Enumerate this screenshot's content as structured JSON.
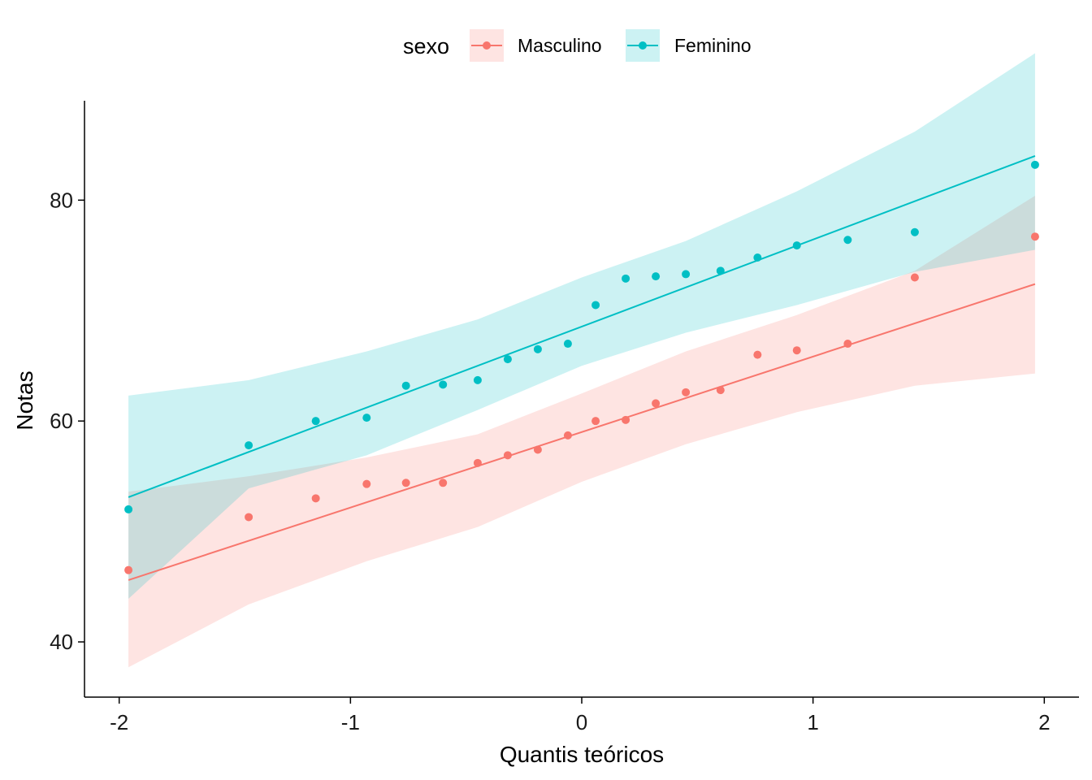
{
  "chart_data": {
    "type": "scatter",
    "title": "",
    "xlabel": "Quantis teóricos",
    "ylabel": "Notas",
    "xlim": [
      -2.15,
      2.15
    ],
    "ylim": [
      35,
      89
    ],
    "xticks": [
      -2,
      -1,
      0,
      1,
      2
    ],
    "xtick_labels": [
      "-2",
      "-1",
      "0",
      "1",
      "2"
    ],
    "yticks": [
      40,
      60,
      80
    ],
    "ytick_labels": [
      "40",
      "60",
      "80"
    ],
    "grid": false,
    "legend": {
      "title": "sexo",
      "position": "top"
    },
    "series": [
      {
        "name": "Masculino",
        "color": "#F8766D",
        "band_color": "#F8766D",
        "points": [
          [
            -1.96,
            46.5
          ],
          [
            -1.44,
            51.3
          ],
          [
            -1.15,
            53.0
          ],
          [
            -0.93,
            54.3
          ],
          [
            -0.76,
            54.4
          ],
          [
            -0.6,
            54.4
          ],
          [
            -0.45,
            56.2
          ],
          [
            -0.32,
            56.9
          ],
          [
            -0.19,
            57.4
          ],
          [
            -0.06,
            58.7
          ],
          [
            0.06,
            60.0
          ],
          [
            0.19,
            60.1
          ],
          [
            0.32,
            61.6
          ],
          [
            0.45,
            62.6
          ],
          [
            0.6,
            62.8
          ],
          [
            0.76,
            66.0
          ],
          [
            0.93,
            66.4
          ],
          [
            1.15,
            67.0
          ],
          [
            1.44,
            73.0
          ],
          [
            1.96,
            76.7
          ]
        ],
        "fit": {
          "x": [
            -1.96,
            1.96
          ],
          "y": [
            45.6,
            72.4
          ]
        },
        "band": [
          {
            "x": -1.96,
            "lo": 37.7,
            "hi": 53.6
          },
          {
            "x": -1.44,
            "lo": 43.4,
            "hi": 55.0
          },
          {
            "x": -0.93,
            "lo": 47.3,
            "hi": 56.7
          },
          {
            "x": -0.45,
            "lo": 50.4,
            "hi": 58.8
          },
          {
            "x": 0.0,
            "lo": 54.5,
            "hi": 62.5
          },
          {
            "x": 0.45,
            "lo": 57.9,
            "hi": 66.3
          },
          {
            "x": 0.93,
            "lo": 60.8,
            "hi": 69.6
          },
          {
            "x": 1.44,
            "lo": 63.2,
            "hi": 73.6
          },
          {
            "x": 1.96,
            "lo": 64.3,
            "hi": 80.4
          }
        ]
      },
      {
        "name": "Feminino",
        "color": "#00BFC4",
        "band_color": "#00BFC4",
        "points": [
          [
            -1.96,
            52.0
          ],
          [
            -1.44,
            57.8
          ],
          [
            -1.15,
            60.0
          ],
          [
            -0.93,
            60.3
          ],
          [
            -0.76,
            63.2
          ],
          [
            -0.6,
            63.3
          ],
          [
            -0.45,
            63.7
          ],
          [
            -0.32,
            65.6
          ],
          [
            -0.19,
            66.5
          ],
          [
            -0.06,
            67.0
          ],
          [
            0.06,
            70.5
          ],
          [
            0.19,
            72.9
          ],
          [
            0.32,
            73.1
          ],
          [
            0.45,
            73.3
          ],
          [
            0.6,
            73.6
          ],
          [
            0.76,
            74.8
          ],
          [
            0.93,
            75.9
          ],
          [
            1.15,
            76.4
          ],
          [
            1.44,
            77.1
          ],
          [
            1.96,
            83.2
          ]
        ],
        "fit": {
          "x": [
            -1.96,
            1.96
          ],
          "y": [
            53.1,
            84.0
          ]
        },
        "band": [
          {
            "x": -1.96,
            "lo": 43.9,
            "hi": 62.3
          },
          {
            "x": -1.44,
            "lo": 53.9,
            "hi": 63.7
          },
          {
            "x": -0.93,
            "lo": 56.9,
            "hi": 66.3
          },
          {
            "x": -0.45,
            "lo": 61.0,
            "hi": 69.2
          },
          {
            "x": 0.0,
            "lo": 65.0,
            "hi": 73.0
          },
          {
            "x": 0.45,
            "lo": 68.0,
            "hi": 76.3
          },
          {
            "x": 0.93,
            "lo": 70.5,
            "hi": 80.8
          },
          {
            "x": 1.44,
            "lo": 73.5,
            "hi": 86.2
          },
          {
            "x": 1.96,
            "lo": 75.5,
            "hi": 93.3
          }
        ]
      }
    ]
  }
}
